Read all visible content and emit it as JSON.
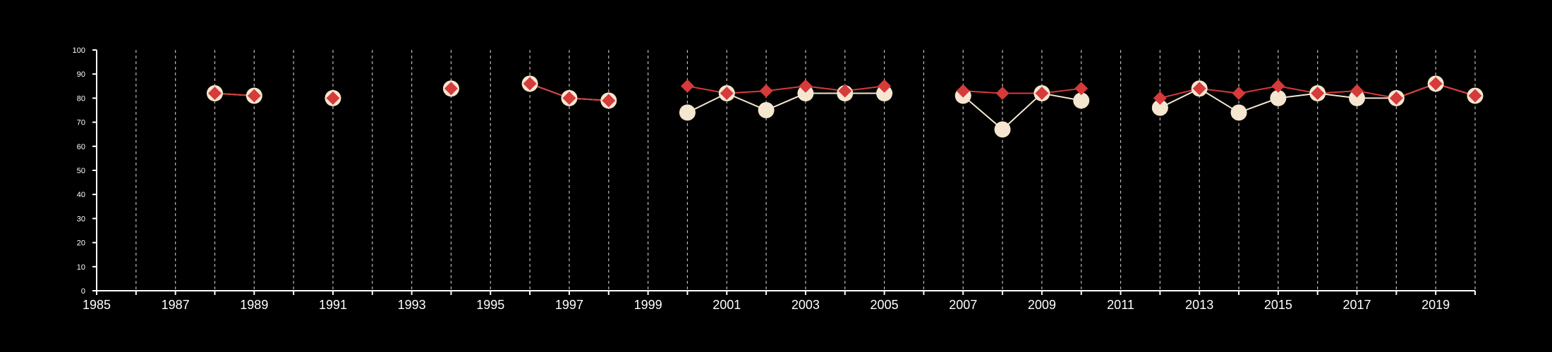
{
  "chart_data": {
    "type": "line",
    "title": "",
    "xlabel": "",
    "ylabel": "",
    "xlim": [
      1985,
      2020
    ],
    "ylim": [
      0,
      100
    ],
    "x_ticks": [
      1985,
      1986,
      1987,
      1988,
      1989,
      1990,
      1991,
      1992,
      1993,
      1994,
      1995,
      1996,
      1997,
      1998,
      1999,
      2000,
      2001,
      2002,
      2003,
      2004,
      2005,
      2006,
      2007,
      2008,
      2009,
      2010,
      2011,
      2012,
      2013,
      2014,
      2015,
      2016,
      2017,
      2018,
      2019,
      2020
    ],
    "x_tick_labels": [
      "1985",
      "1987",
      "1989",
      "1991",
      "1993",
      "1995",
      "1997",
      "1999",
      "2001",
      "2003",
      "2005",
      "2007",
      "2009",
      "2011",
      "2013",
      "2015",
      "2017",
      "2019"
    ],
    "y_ticks": [
      0,
      10,
      20,
      30,
      40,
      50,
      60,
      70,
      80,
      90,
      100
    ],
    "y_tick_labels": [
      "0",
      "10",
      "20",
      "30",
      "40",
      "50",
      "60",
      "70",
      "80",
      "90",
      "100"
    ],
    "grid": "vertical dashed lines at every year",
    "legend": "none",
    "background": "#000000",
    "series": [
      {
        "marker": "circle",
        "color": "#f5e6d0",
        "points": [
          [
            1988,
            82
          ],
          [
            1989,
            81
          ],
          [
            1991,
            80
          ],
          [
            1994,
            84
          ],
          [
            1996,
            86
          ],
          [
            1997,
            80
          ],
          [
            1998,
            79
          ],
          [
            2000,
            74
          ],
          [
            2001,
            82
          ],
          [
            2002,
            75
          ],
          [
            2003,
            82
          ],
          [
            2004,
            82
          ],
          [
            2005,
            82
          ],
          [
            2007,
            81
          ],
          [
            2008,
            67
          ],
          [
            2009,
            82
          ],
          [
            2010,
            79
          ],
          [
            2012,
            76
          ],
          [
            2013,
            84
          ],
          [
            2014,
            74
          ],
          [
            2015,
            80
          ],
          [
            2016,
            82
          ],
          [
            2017,
            80
          ],
          [
            2018,
            80
          ],
          [
            2019,
            86
          ],
          [
            2020,
            81
          ]
        ]
      },
      {
        "marker": "diamond",
        "color": "#d63a3a",
        "points": [
          [
            1988,
            82
          ],
          [
            1989,
            81
          ],
          [
            1991,
            80
          ],
          [
            1994,
            84
          ],
          [
            1996,
            86
          ],
          [
            1997,
            80
          ],
          [
            1998,
            79
          ],
          [
            2000,
            85
          ],
          [
            2001,
            82
          ],
          [
            2002,
            83
          ],
          [
            2003,
            85
          ],
          [
            2004,
            83
          ],
          [
            2005,
            85
          ],
          [
            2007,
            83
          ],
          [
            2008,
            82
          ],
          [
            2009,
            82
          ],
          [
            2010,
            84
          ],
          [
            2012,
            80
          ],
          [
            2013,
            84
          ],
          [
            2014,
            82
          ],
          [
            2015,
            85
          ],
          [
            2016,
            82
          ],
          [
            2017,
            83
          ],
          [
            2018,
            80
          ],
          [
            2019,
            86
          ],
          [
            2020,
            81
          ]
        ]
      }
    ]
  }
}
